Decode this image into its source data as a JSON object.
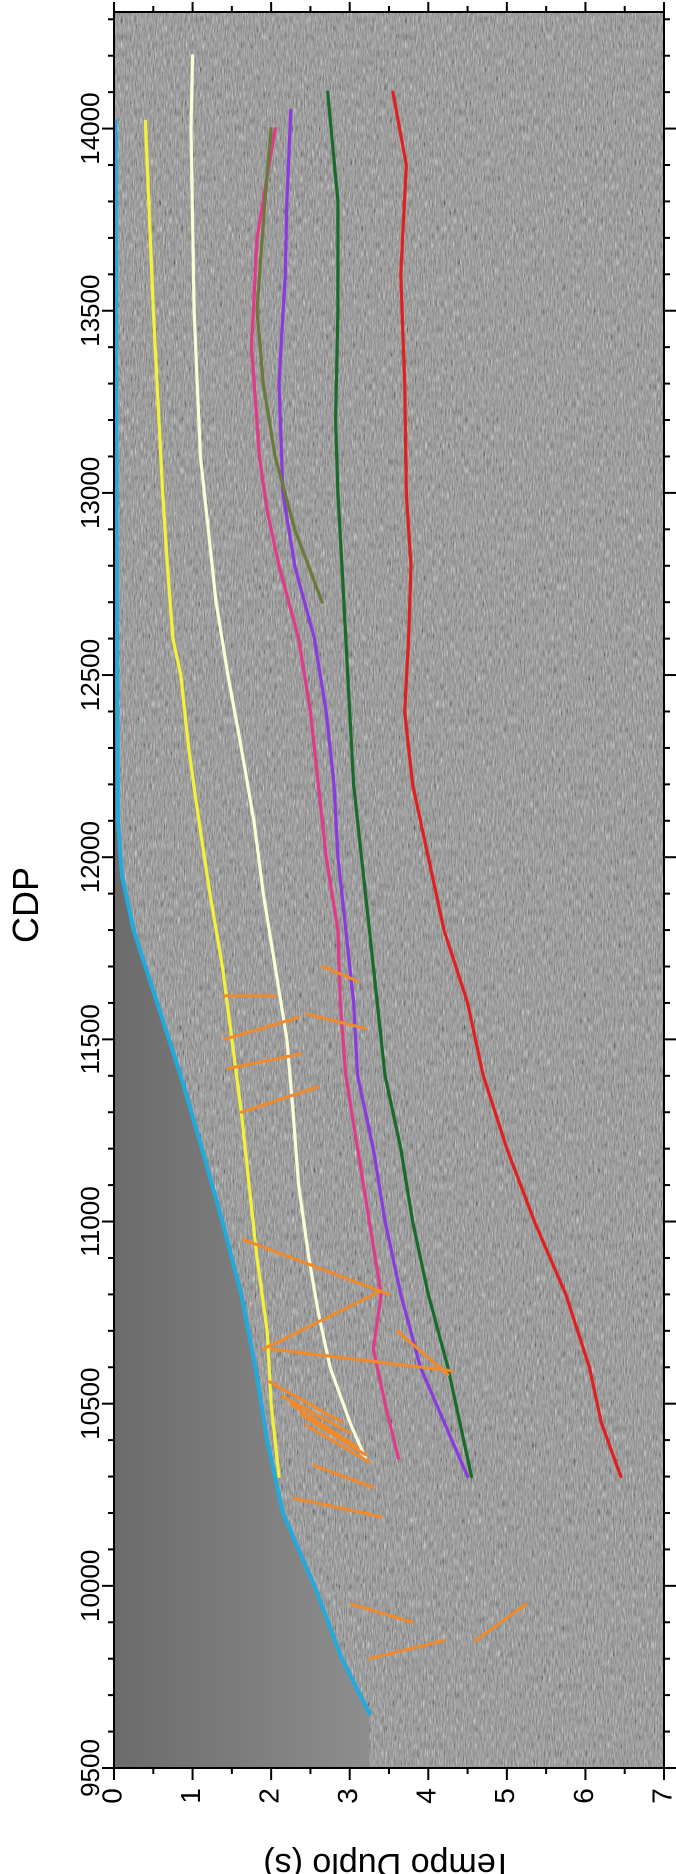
{
  "figure": {
    "top_axis_title": "CDP",
    "bottom_axis_title": "Tempo Duplo (s)"
  },
  "chart_data": {
    "type": "seismic-section",
    "title": "",
    "cdp_axis": {
      "label": "CDP",
      "range": [
        9500,
        14320
      ],
      "ticks": [
        9500,
        10000,
        10500,
        11000,
        11500,
        12000,
        12500,
        13000,
        13500,
        14000
      ]
    },
    "time_axis": {
      "label": "Tempo Duplo (s)",
      "range": [
        0,
        7
      ],
      "ticks": [
        0,
        1,
        2,
        3,
        4,
        5,
        6,
        7
      ]
    },
    "colors": {
      "seafloor": "#22aadd",
      "yellow": "#f2f23a",
      "cream": "#fbfbd4",
      "pink": "#e23a8a",
      "purple": "#8a3adf",
      "olive": "#6a7a3a",
      "green": "#1a6a2a",
      "red": "#e02020",
      "faults": "#f08a2a",
      "water": "#7a7a7a",
      "noise": "#8a8a8a"
    },
    "horizons": [
      {
        "id": "seafloor",
        "color": "#22aadd",
        "points": [
          [
            9650,
            3.25
          ],
          [
            9800,
            2.9
          ],
          [
            10000,
            2.55
          ],
          [
            10200,
            2.15
          ],
          [
            10400,
            1.95
          ],
          [
            10600,
            1.8
          ],
          [
            10800,
            1.62
          ],
          [
            11000,
            1.38
          ],
          [
            11200,
            1.12
          ],
          [
            11400,
            0.85
          ],
          [
            11600,
            0.55
          ],
          [
            11800,
            0.25
          ],
          [
            11950,
            0.1
          ],
          [
            12100,
            0.05
          ],
          [
            12500,
            0.04
          ],
          [
            13000,
            0.03
          ],
          [
            14020,
            0.02
          ]
        ]
      },
      {
        "id": "yellow",
        "color": "#f2f23a",
        "points": [
          [
            10300,
            2.1
          ],
          [
            10500,
            2.0
          ],
          [
            10700,
            1.95
          ],
          [
            10900,
            1.82
          ],
          [
            11100,
            1.72
          ],
          [
            11300,
            1.62
          ],
          [
            11500,
            1.5
          ],
          [
            11700,
            1.38
          ],
          [
            11900,
            1.22
          ],
          [
            12100,
            1.08
          ],
          [
            12300,
            0.95
          ],
          [
            12500,
            0.85
          ],
          [
            12600,
            0.75
          ],
          [
            12800,
            0.68
          ],
          [
            13000,
            0.62
          ],
          [
            13500,
            0.5
          ],
          [
            14020,
            0.4
          ]
        ]
      },
      {
        "id": "cream",
        "color": "#fbfbd4",
        "points": [
          [
            10350,
            3.2
          ],
          [
            10450,
            3.0
          ],
          [
            10600,
            2.75
          ],
          [
            10750,
            2.6
          ],
          [
            10900,
            2.48
          ],
          [
            11100,
            2.35
          ],
          [
            11300,
            2.28
          ],
          [
            11500,
            2.2
          ],
          [
            11700,
            2.05
          ],
          [
            11900,
            1.9
          ],
          [
            12100,
            1.78
          ],
          [
            12300,
            1.62
          ],
          [
            12500,
            1.45
          ],
          [
            12700,
            1.3
          ],
          [
            12900,
            1.2
          ],
          [
            13100,
            1.1
          ],
          [
            13500,
            1.02
          ],
          [
            14000,
            0.98
          ],
          [
            14200,
            1.0
          ]
        ]
      },
      {
        "id": "pink",
        "color": "#e23a8a",
        "points": [
          [
            10350,
            3.62
          ],
          [
            10500,
            3.45
          ],
          [
            10650,
            3.3
          ],
          [
            10800,
            3.4
          ],
          [
            11000,
            3.25
          ],
          [
            11200,
            3.1
          ],
          [
            11400,
            2.95
          ],
          [
            11600,
            2.88
          ],
          [
            11800,
            2.85
          ],
          [
            12000,
            2.7
          ],
          [
            12200,
            2.6
          ],
          [
            12400,
            2.5
          ],
          [
            12600,
            2.35
          ],
          [
            12800,
            2.1
          ],
          [
            12950,
            1.95
          ],
          [
            13100,
            1.85
          ],
          [
            13400,
            1.75
          ],
          [
            13700,
            1.82
          ],
          [
            14000,
            2.05
          ]
        ]
      },
      {
        "id": "purple",
        "color": "#8a3adf",
        "points": [
          [
            10300,
            4.5
          ],
          [
            10450,
            4.2
          ],
          [
            10600,
            3.9
          ],
          [
            10800,
            3.65
          ],
          [
            11000,
            3.45
          ],
          [
            11200,
            3.3
          ],
          [
            11400,
            3.1
          ],
          [
            11600,
            3.05
          ],
          [
            11800,
            2.95
          ],
          [
            12000,
            2.85
          ],
          [
            12200,
            2.8
          ],
          [
            12400,
            2.7
          ],
          [
            12600,
            2.55
          ],
          [
            12800,
            2.3
          ],
          [
            13000,
            2.15
          ],
          [
            13300,
            2.1
          ],
          [
            13600,
            2.18
          ],
          [
            13800,
            2.2
          ],
          [
            14050,
            2.25
          ]
        ]
      },
      {
        "id": "olive",
        "color": "#6a7a3a",
        "points": [
          [
            12700,
            2.65
          ],
          [
            12900,
            2.3
          ],
          [
            13100,
            2.05
          ],
          [
            13300,
            1.9
          ],
          [
            13500,
            1.82
          ],
          [
            13800,
            1.92
          ],
          [
            14000,
            2.0
          ]
        ]
      },
      {
        "id": "green",
        "color": "#1a6a2a",
        "points": [
          [
            10300,
            4.55
          ],
          [
            10450,
            4.4
          ],
          [
            10600,
            4.25
          ],
          [
            10800,
            4.0
          ],
          [
            11000,
            3.8
          ],
          [
            11200,
            3.65
          ],
          [
            11400,
            3.45
          ],
          [
            11600,
            3.35
          ],
          [
            11800,
            3.25
          ],
          [
            12000,
            3.15
          ],
          [
            12200,
            3.05
          ],
          [
            12400,
            3.0
          ],
          [
            12600,
            2.95
          ],
          [
            12800,
            2.9
          ],
          [
            13000,
            2.85
          ],
          [
            13200,
            2.82
          ],
          [
            13500,
            2.85
          ],
          [
            13800,
            2.85
          ],
          [
            14100,
            2.72
          ]
        ]
      },
      {
        "id": "red",
        "color": "#e02020",
        "points": [
          [
            10300,
            6.45
          ],
          [
            10450,
            6.2
          ],
          [
            10600,
            6.05
          ],
          [
            10800,
            5.75
          ],
          [
            11000,
            5.35
          ],
          [
            11200,
            5.0
          ],
          [
            11400,
            4.7
          ],
          [
            11600,
            4.5
          ],
          [
            11800,
            4.2
          ],
          [
            12000,
            4.0
          ],
          [
            12200,
            3.8
          ],
          [
            12400,
            3.7
          ],
          [
            12600,
            3.75
          ],
          [
            12800,
            3.78
          ],
          [
            13000,
            3.72
          ],
          [
            13300,
            3.7
          ],
          [
            13600,
            3.65
          ],
          [
            13900,
            3.72
          ],
          [
            14100,
            3.55
          ]
        ]
      }
    ],
    "faults": [
      [
        [
          11620,
          2.05
        ],
        [
          11620,
          1.4
        ]
      ],
      [
        [
          11560,
          2.35
        ],
        [
          11500,
          1.4
        ]
      ],
      [
        [
          11460,
          2.38
        ],
        [
          11420,
          1.45
        ]
      ],
      [
        [
          11370,
          2.6
        ],
        [
          11300,
          1.62
        ]
      ],
      [
        [
          11700,
          2.65
        ],
        [
          11660,
          3.1
        ]
      ],
      [
        [
          11570,
          2.45
        ],
        [
          11530,
          3.2
        ]
      ],
      [
        [
          10950,
          1.65
        ],
        [
          10800,
          3.5
        ]
      ],
      [
        [
          10810,
          3.4
        ],
        [
          10650,
          1.9
        ]
      ],
      [
        [
          10650,
          2.0
        ],
        [
          10590,
          4.3
        ]
      ],
      [
        [
          10580,
          4.25
        ],
        [
          10700,
          3.6
        ]
      ],
      [
        [
          10560,
          1.98
        ],
        [
          10450,
          2.9
        ]
      ],
      [
        [
          10520,
          2.15
        ],
        [
          10420,
          3.0
        ]
      ],
      [
        [
          10500,
          2.25
        ],
        [
          10380,
          3.1
        ]
      ],
      [
        [
          10470,
          2.38
        ],
        [
          10360,
          3.2
        ]
      ],
      [
        [
          10440,
          2.45
        ],
        [
          10340,
          3.25
        ]
      ],
      [
        [
          10330,
          2.55
        ],
        [
          10270,
          3.3
        ]
      ],
      [
        [
          10240,
          2.3
        ],
        [
          10190,
          3.4
        ]
      ],
      [
        [
          9950,
          3.02
        ],
        [
          9900,
          3.8
        ]
      ],
      [
        [
          9800,
          3.25
        ],
        [
          9850,
          4.2
        ]
      ],
      [
        [
          9950,
          5.25
        ],
        [
          9850,
          4.6
        ]
      ]
    ]
  }
}
